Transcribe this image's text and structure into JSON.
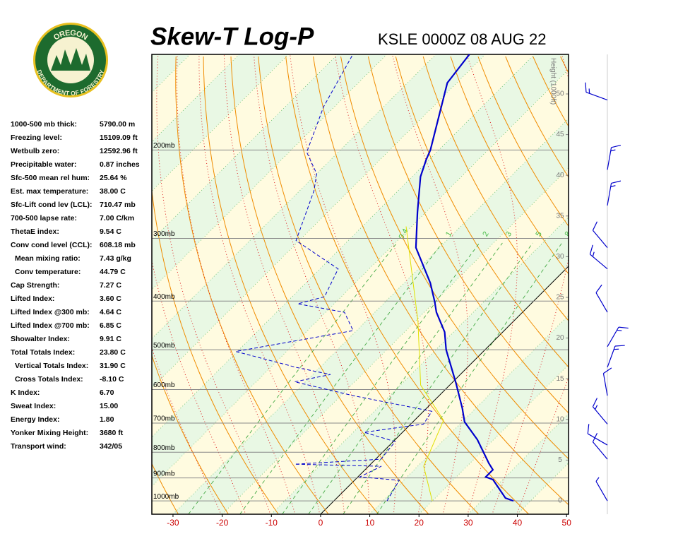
{
  "logo": {
    "top": "OREGON",
    "bottom": "DEPARTMENT OF FORESTRY"
  },
  "indices": [
    {
      "label": "1000-500 mb thick:",
      "value": "5790.00 m"
    },
    {
      "label": "Freezing level:",
      "value": "15109.09 ft"
    },
    {
      "label": "Wetbulb zero:",
      "value": "12592.96 ft"
    },
    {
      "label": "Precipitable water:",
      "value": "0.87 inches"
    },
    {
      "label": "Sfc-500 mean rel hum:",
      "value": "25.64 %"
    },
    {
      "label": "Est. max temperature:",
      "value": "38.00 C"
    },
    {
      "label": "Sfc-Lift cond lev (LCL):",
      "value": "710.47 mb"
    },
    {
      "label": "700-500 lapse rate:",
      "value": "7.00 C/km"
    },
    {
      "label": "ThetaE index:",
      "value": "9.54 C"
    },
    {
      "label": "Conv cond level (CCL):",
      "value": "608.18 mb"
    },
    {
      "label": "Mean mixing ratio:",
      "value": "7.43 g/kg"
    },
    {
      "label": "Conv temperature:",
      "value": "44.79 C"
    },
    {
      "label": "Cap Strength:",
      "value": "7.27 C"
    },
    {
      "label": "Lifted Index:",
      "value": "3.60 C"
    },
    {
      "label": "Lifted Index @300 mb:",
      "value": "4.64 C"
    },
    {
      "label": "Lifted Index @700 mb:",
      "value": "6.85 C"
    },
    {
      "label": "Showalter Index:",
      "value": "9.91 C"
    },
    {
      "label": "Total Totals Index:",
      "value": "23.80 C"
    },
    {
      "label": "Vertical Totals Index:",
      "value": "31.90 C"
    },
    {
      "label": "Cross Totals Index:",
      "value": "-8.10 C"
    },
    {
      "label": "K Index:",
      "value": "6.70"
    },
    {
      "label": "Sweat Index:",
      "value": "15.00"
    },
    {
      "label": "Energy Index:",
      "value": "1.80"
    },
    {
      "label": "Yonker Mixing Height:",
      "value": "3680 ft"
    },
    {
      "label": "Transport wind:",
      "value": "342/05"
    }
  ],
  "chart_data": {
    "type": "skew-t",
    "title": "Skew-T Log-P",
    "subtitle": "KSLE 0000Z 08 AUG 22",
    "xlim": [
      -34.3,
      50.4
    ],
    "xticks": [
      -30,
      -20,
      -10,
      0,
      10,
      20,
      30,
      40,
      50
    ],
    "ylim": [
      1063,
      129
    ],
    "yticks": [
      {
        "value": 1000,
        "label": "1000mb"
      },
      {
        "value": 900,
        "label": "900mb"
      },
      {
        "value": 800,
        "label": "800mb"
      },
      {
        "value": 700,
        "label": "700mb"
      },
      {
        "value": 600,
        "label": "600mb"
      },
      {
        "value": 500,
        "label": "500mb"
      },
      {
        "value": 400,
        "label": "400mb"
      },
      {
        "value": 300,
        "label": "300mb"
      },
      {
        "value": 200,
        "label": "200mb"
      }
    ],
    "height_label": "Height (1000ft)",
    "height_lim": [
      -1.65,
      54.86
    ],
    "height_ticks": [
      0,
      5,
      10,
      15,
      20,
      25,
      30,
      35,
      40,
      45,
      50
    ],
    "mixing_ratios": [
      0.4,
      1,
      2,
      3,
      5,
      8
    ],
    "series": [
      {
        "color": "#0000cc",
        "dash": false,
        "width": 2.2,
        "pressure": [
          1000,
          987,
          907,
          896,
          867,
          842,
          755,
          696,
          653,
          584,
          561,
          500,
          461,
          421,
          401,
          368,
          313,
          266,
          226,
          209,
          200,
          147,
          129
        ],
        "values": [
          36.5,
          34.3,
          28.0,
          26.0,
          26.0,
          23.9,
          16.7,
          10.5,
          7.2,
          1.0,
          -1.3,
          -7.9,
          -11.8,
          -17.5,
          -20.0,
          -24.7,
          -34.8,
          -41.7,
          -48.3,
          -50.6,
          -51.7,
          -61.9,
          -63.2
        ]
      },
      {
        "color": "#0000cc",
        "dash": true,
        "width": 1,
        "pressure": [
          1000,
          910,
          896,
          853,
          845,
          826,
          762,
          730,
          703,
          663,
          617,
          579,
          560,
          542,
          504,
          458,
          421,
          405,
          392,
          345,
          303,
          241,
          223,
          202,
          164,
          129
        ],
        "values": [
          10.8,
          9.1,
          0.4,
          2.6,
          -15.4,
          1.1,
          0.4,
          -7.8,
          2.6,
          1.7,
          -17.5,
          -32.2,
          -26.4,
          -34.8,
          -50.3,
          -30.7,
          -36.2,
          -47.4,
          -43.4,
          -46.3,
          -60.6,
          -67.1,
          -70.0,
          -76.4,
          -82.2,
          -86.9
        ]
      },
      {
        "color": "#e0e000",
        "dash": false,
        "width": 1,
        "pressure": [
          1000,
          853,
          691,
          588,
          439,
          284
        ],
        "values": [
          20.0,
          11.2,
          5.9,
          -5.9,
          -19.4,
          -41.1
        ]
      }
    ],
    "winds": [
      {
        "pressure": 1000,
        "direction": 330,
        "speed": 5
      },
      {
        "pressure": 826,
        "direction": 320,
        "speed": 10
      },
      {
        "pressure": 774,
        "direction": 300,
        "speed": 10
      },
      {
        "pressure": 703,
        "direction": 320,
        "speed": 15
      },
      {
        "pressure": 617,
        "direction": 350,
        "speed": 10
      },
      {
        "pressure": 542,
        "direction": 20,
        "speed": 15
      },
      {
        "pressure": 493,
        "direction": 30,
        "speed": 15
      },
      {
        "pressure": 421,
        "direction": 330,
        "speed": 10
      },
      {
        "pressure": 345,
        "direction": 310,
        "speed": 15
      },
      {
        "pressure": 313,
        "direction": 320,
        "speed": 10
      },
      {
        "pressure": 258,
        "direction": 10,
        "speed": 15
      },
      {
        "pressure": 219,
        "direction": 10,
        "speed": 15
      },
      {
        "pressure": 159,
        "direction": 290,
        "speed": 15
      }
    ]
  }
}
